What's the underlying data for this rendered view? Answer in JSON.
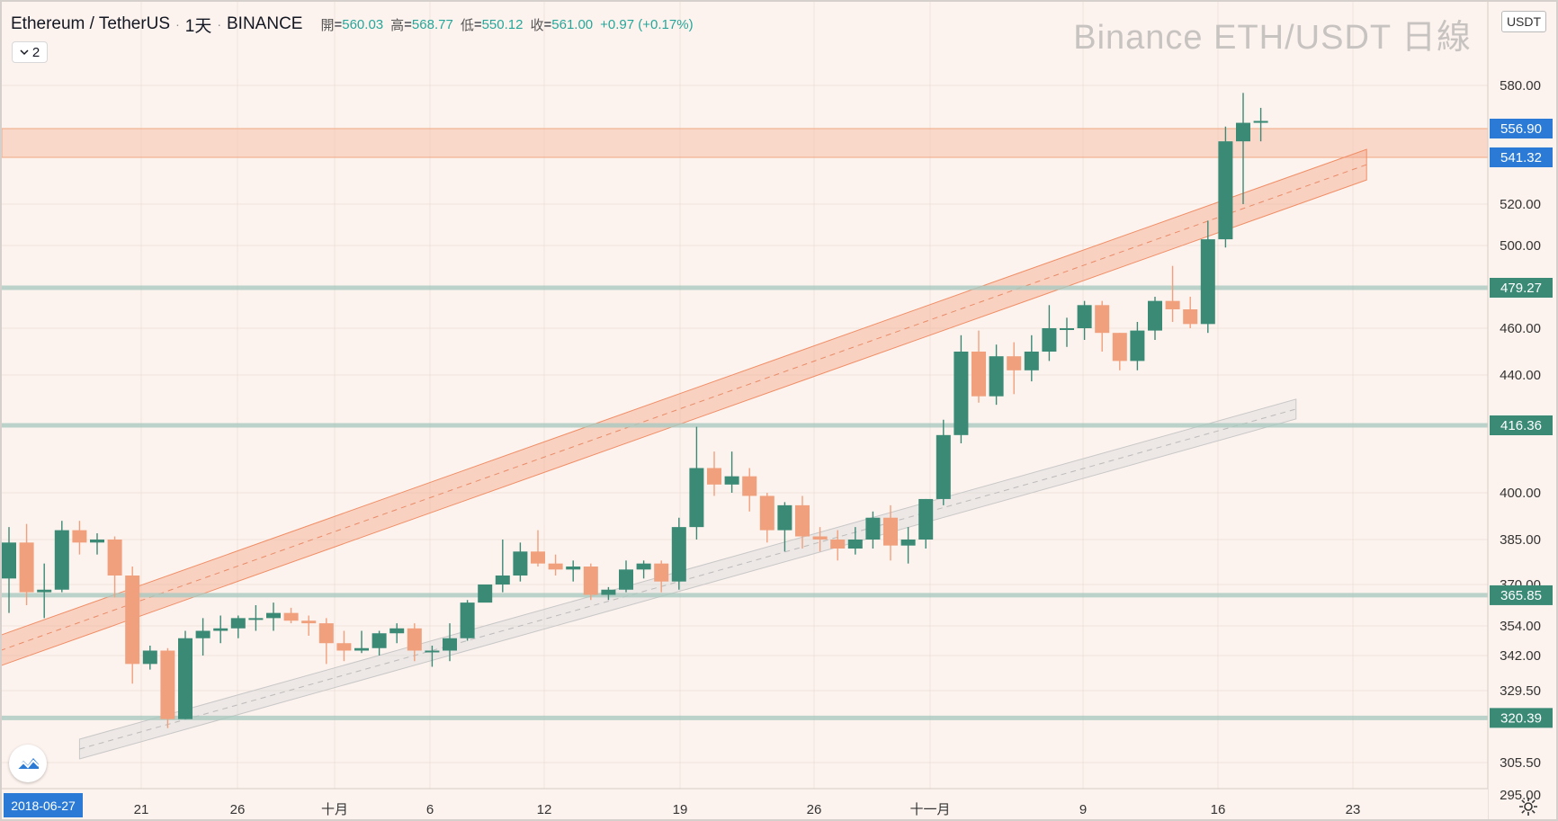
{
  "header": {
    "symbol": "Ethereum / TetherUS",
    "interval": "1天",
    "exchange": "BINANCE",
    "ohlc": [
      {
        "key": "開",
        "value": "560.03"
      },
      {
        "key": "高",
        "value": "568.77"
      },
      {
        "key": "低",
        "value": "550.12"
      },
      {
        "key": "收",
        "value": "561.00"
      }
    ],
    "change": "+0.97 (+0.17%)",
    "collapse_count": "2"
  },
  "watermark": "Binance ETH/USDT 日線",
  "currency": "USDT",
  "date_tag": "2018-06-27",
  "icons": {
    "logo": "tradingview-logo-icon",
    "settings": "gear-icon",
    "collapse": "chevron-down-icon"
  },
  "colors": {
    "up": "#3a8a76",
    "down": "#f0a07c",
    "background": "#fdf3ee",
    "level_tag": "#2b7bd6",
    "support_tag": "#3a8a76"
  },
  "chart_data": {
    "type": "candlestick",
    "x_ticks": [
      "21",
      "26",
      "十月",
      "6",
      "12",
      "19",
      "26",
      "十一月",
      "9",
      "16",
      "23"
    ],
    "y_ticks": [
      "580.00",
      "520.00",
      "500.00",
      "460.00",
      "440.00",
      "400.00",
      "385.00",
      "370.00",
      "354.00",
      "342.00",
      "329.50",
      "305.50",
      "295.00"
    ],
    "price_levels": [
      {
        "value": "556.90",
        "color": "#2b7bd6",
        "kind": "zone-top"
      },
      {
        "value": "541.32",
        "color": "#2b7bd6",
        "kind": "zone-bottom"
      },
      {
        "value": "479.27",
        "color": "#3a8a76",
        "kind": "support"
      },
      {
        "value": "416.36",
        "color": "#3a8a76",
        "kind": "support"
      },
      {
        "value": "365.85",
        "color": "#3a8a76",
        "kind": "support"
      },
      {
        "value": "320.39",
        "color": "#3a8a76",
        "kind": "support"
      }
    ],
    "channels": [
      {
        "kind": "upper",
        "start": {
          "candle": -0.5,
          "price": 344
        },
        "end": {
          "candle": 77,
          "price": 538
        }
      },
      {
        "kind": "lower",
        "start": {
          "candle": 4,
          "price": 310
        },
        "end": {
          "candle": 73,
          "price": 424
        }
      }
    ],
    "candles": [
      [
        372,
        384,
        359,
        389
      ],
      [
        384,
        367,
        362,
        390
      ],
      [
        367,
        368,
        357,
        377
      ],
      [
        368,
        388,
        367,
        391
      ],
      [
        388,
        384,
        380,
        391
      ],
      [
        384,
        385,
        380,
        387
      ],
      [
        385,
        373,
        365,
        386
      ],
      [
        373,
        339,
        332,
        376
      ],
      [
        339,
        344,
        337,
        346
      ],
      [
        344,
        320,
        317,
        345
      ],
      [
        320,
        349,
        320,
        352
      ],
      [
        349,
        352,
        342,
        357
      ],
      [
        352,
        353,
        347,
        358
      ],
      [
        353,
        357,
        349,
        358
      ],
      [
        357,
        357,
        352,
        362
      ],
      [
        357,
        359,
        352,
        363
      ],
      [
        359,
        356,
        355,
        361
      ],
      [
        356,
        355,
        350,
        358
      ],
      [
        355,
        347,
        339,
        357
      ],
      [
        347,
        344,
        340,
        352
      ],
      [
        344,
        345,
        343,
        352
      ],
      [
        345,
        351,
        342,
        352
      ],
      [
        351,
        353,
        347,
        355
      ],
      [
        353,
        344,
        340,
        355
      ],
      [
        344,
        344,
        338,
        346
      ],
      [
        344,
        349,
        340,
        355
      ],
      [
        349,
        363,
        348,
        364
      ],
      [
        363,
        370,
        365,
        370
      ],
      [
        370,
        373,
        367,
        385
      ],
      [
        373,
        381,
        371,
        384
      ],
      [
        381,
        377,
        376,
        388
      ],
      [
        377,
        375,
        373,
        380
      ],
      [
        375,
        376,
        371,
        378
      ],
      [
        376,
        366,
        364,
        377
      ],
      [
        366,
        368,
        364,
        369
      ],
      [
        368,
        375,
        367,
        378
      ],
      [
        375,
        377,
        372,
        378
      ],
      [
        377,
        371,
        367,
        378
      ],
      [
        371,
        389,
        368,
        392
      ],
      [
        389,
        406,
        385,
        416
      ],
      [
        406,
        402,
        399,
        410
      ],
      [
        402,
        404,
        400,
        410
      ],
      [
        404,
        399,
        394,
        406
      ],
      [
        399,
        388,
        384,
        400
      ],
      [
        388,
        396,
        381,
        397
      ],
      [
        396,
        386,
        382,
        399
      ],
      [
        386,
        385,
        381,
        389
      ],
      [
        385,
        382,
        378,
        388
      ],
      [
        382,
        385,
        380,
        389
      ],
      [
        385,
        392,
        382,
        394
      ],
      [
        392,
        383,
        378,
        396
      ],
      [
        383,
        385,
        377,
        389
      ],
      [
        385,
        398,
        382,
        398
      ],
      [
        398,
        414,
        396,
        419
      ],
      [
        414,
        450,
        412,
        457
      ],
      [
        450,
        430,
        427,
        459
      ],
      [
        430,
        448,
        426,
        453
      ],
      [
        448,
        442,
        431,
        454
      ],
      [
        442,
        450,
        437,
        457
      ],
      [
        450,
        460,
        446,
        471
      ],
      [
        460,
        460,
        452,
        465
      ],
      [
        460,
        471,
        455,
        473
      ],
      [
        471,
        458,
        450,
        473
      ],
      [
        458,
        446,
        442,
        458
      ],
      [
        446,
        459,
        442,
        463
      ],
      [
        459,
        473,
        455,
        475
      ],
      [
        473,
        469,
        463,
        490
      ],
      [
        469,
        462,
        460,
        475
      ],
      [
        462,
        503,
        458,
        512
      ],
      [
        503,
        550,
        499,
        558
      ],
      [
        550,
        560,
        520,
        576
      ],
      [
        560,
        561,
        550,
        568
      ]
    ],
    "candle_x_origin": 8,
    "candle_spacing": 19.6
  }
}
